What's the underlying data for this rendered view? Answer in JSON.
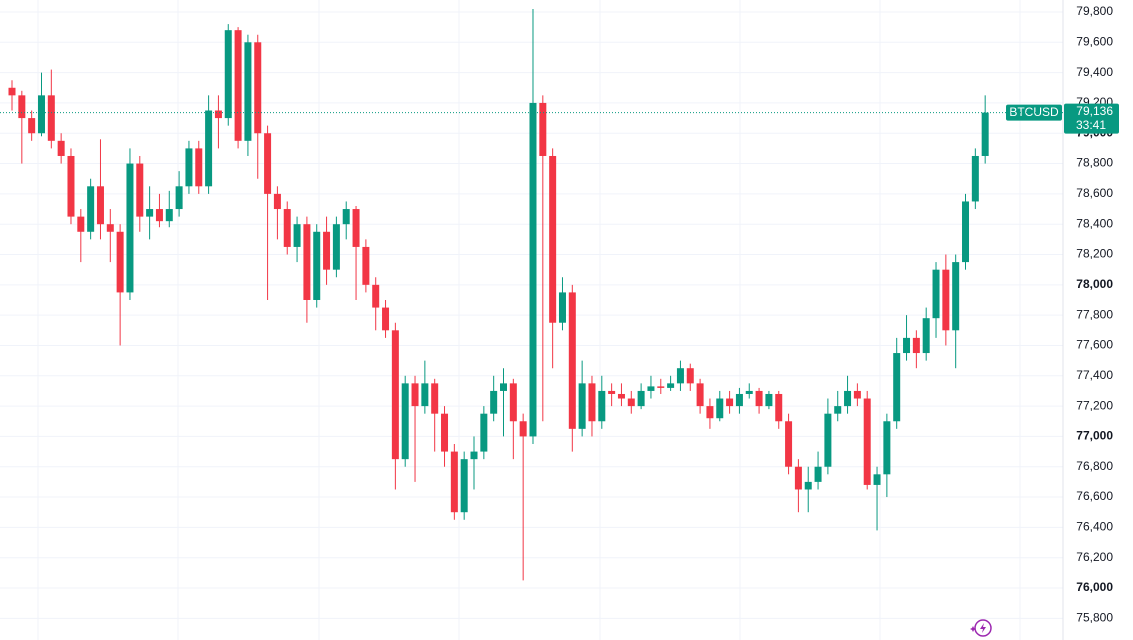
{
  "chart_data": {
    "type": "candlestick",
    "series": [
      {
        "name": "BTCUSD",
        "up_color": "#089981",
        "down_color": "#f23645",
        "open": [
          79300,
          79250,
          79100,
          79000,
          79250,
          78950,
          78850,
          78450,
          78350,
          78650,
          78400,
          78350,
          77950,
          78800,
          78450,
          78500,
          78420,
          78500,
          78650,
          78900,
          78650,
          79150,
          79100,
          79680,
          78950,
          79600,
          79000,
          78600,
          78500,
          78250,
          78400,
          77900,
          78350,
          78100,
          78400,
          78500,
          78250,
          78000,
          77850,
          77700,
          76850,
          77350,
          77200,
          77350,
          77150,
          76900,
          76500,
          76850,
          76900,
          77150,
          77300,
          77350,
          77100,
          77000,
          79200,
          78850,
          77750,
          77950,
          77050,
          77350,
          77100,
          77300,
          77280,
          77250,
          77200,
          77300,
          77330,
          77320,
          77350,
          77450,
          77350,
          77200,
          77120,
          77250,
          77200,
          77280,
          77300,
          77200,
          77280,
          77100,
          76800,
          76650,
          76700,
          76800,
          77150,
          77200,
          77300,
          77250,
          76680,
          76750,
          77100,
          77550,
          77650,
          77550,
          77780,
          78100,
          77700,
          78150,
          78550,
          78850
        ],
        "high": [
          79350,
          79280,
          79150,
          79400,
          79420,
          79000,
          78900,
          78500,
          78700,
          78960,
          78500,
          78400,
          78900,
          78850,
          78650,
          78600,
          78620,
          78750,
          78950,
          78950,
          79250,
          79250,
          79720,
          79700,
          79650,
          79650,
          79050,
          78650,
          78550,
          78450,
          78450,
          78400,
          78450,
          78450,
          78550,
          78520,
          78300,
          78050,
          77900,
          77750,
          77400,
          77400,
          77500,
          77380,
          77200,
          76950,
          76900,
          77000,
          77200,
          77400,
          77450,
          77380,
          77150,
          79820,
          79250,
          78900,
          78050,
          78000,
          77500,
          77400,
          77400,
          77350,
          77350,
          77300,
          77350,
          77400,
          77380,
          77400,
          77500,
          77480,
          77380,
          77250,
          77300,
          77300,
          77320,
          77350,
          77320,
          77300,
          77300,
          77150,
          76850,
          76800,
          76900,
          77250,
          77300,
          77400,
          77350,
          77300,
          76800,
          77150,
          77650,
          77800,
          77700,
          77850,
          78150,
          78200,
          78200,
          78600,
          78900,
          79250
        ],
        "low": [
          79150,
          78800,
          78950,
          78980,
          78900,
          78800,
          78400,
          78150,
          78300,
          78300,
          78150,
          77600,
          77900,
          78350,
          78300,
          78380,
          78380,
          78450,
          78600,
          78600,
          78600,
          78900,
          79050,
          78900,
          78850,
          78700,
          77900,
          78300,
          78200,
          78150,
          77750,
          77850,
          78000,
          78050,
          78300,
          77900,
          77950,
          77700,
          77650,
          76650,
          76800,
          76700,
          77150,
          76900,
          76800,
          76450,
          76450,
          76650,
          76850,
          77100,
          77000,
          76850,
          76050,
          76950,
          77100,
          77450,
          77700,
          76900,
          77000,
          77000,
          77050,
          77200,
          77200,
          77150,
          77180,
          77250,
          77280,
          77300,
          77300,
          77300,
          77150,
          77050,
          77100,
          77150,
          77150,
          77250,
          77150,
          77180,
          77050,
          76750,
          76500,
          76500,
          76650,
          76750,
          77100,
          77150,
          77200,
          76650,
          76380,
          76600,
          77050,
          77500,
          77450,
          77500,
          77650,
          77600,
          77450,
          78100,
          78500,
          78800
        ],
        "close": [
          79250,
          79100,
          79000,
          79250,
          78950,
          78850,
          78450,
          78350,
          78650,
          78400,
          78350,
          77950,
          78800,
          78450,
          78500,
          78420,
          78500,
          78650,
          78900,
          78650,
          79150,
          79100,
          79680,
          78950,
          79600,
          79000,
          78600,
          78500,
          78250,
          78400,
          77900,
          78350,
          78100,
          78400,
          78500,
          78250,
          78000,
          77850,
          77700,
          76850,
          77350,
          77200,
          77350,
          77150,
          76900,
          76500,
          76850,
          76900,
          77150,
          77300,
          77350,
          77100,
          77000,
          79200,
          78850,
          77750,
          77950,
          77050,
          77350,
          77100,
          77300,
          77280,
          77250,
          77200,
          77300,
          77330,
          77320,
          77350,
          77450,
          77350,
          77200,
          77120,
          77250,
          77200,
          77280,
          77300,
          77200,
          77280,
          77100,
          76800,
          76650,
          76700,
          76800,
          77150,
          77200,
          77300,
          77250,
          76680,
          76750,
          77100,
          77550,
          77650,
          77550,
          77780,
          78100,
          77700,
          78150,
          78550,
          78850,
          79136
        ]
      }
    ],
    "ylim": [
      75657,
      79879
    ],
    "yticks": [
      {
        "value": 75800,
        "label": "75,800"
      },
      {
        "value": 76000,
        "label": "76,000"
      },
      {
        "value": 76200,
        "label": "76,200"
      },
      {
        "value": 76400,
        "label": "76,400"
      },
      {
        "value": 76600,
        "label": "76,600"
      },
      {
        "value": 76800,
        "label": "76,800"
      },
      {
        "value": 77000,
        "label": "77,000"
      },
      {
        "value": 77200,
        "label": "77,200"
      },
      {
        "value": 77400,
        "label": "77,400"
      },
      {
        "value": 77600,
        "label": "77,600"
      },
      {
        "value": 77800,
        "label": "77,800"
      },
      {
        "value": 78000,
        "label": "78,000"
      },
      {
        "value": 78200,
        "label": "78,200"
      },
      {
        "value": 78400,
        "label": "78,400"
      },
      {
        "value": 78600,
        "label": "78,600"
      },
      {
        "value": 78800,
        "label": "78,800"
      },
      {
        "value": 79000,
        "label": "79,000"
      },
      {
        "value": 79200,
        "label": "79,200"
      },
      {
        "value": 79400,
        "label": "79,400"
      },
      {
        "value": 79600,
        "label": "79,600"
      },
      {
        "value": 79800,
        "label": "79,800"
      }
    ],
    "grid": true,
    "price_label": {
      "value": 79136,
      "label": "79,136"
    },
    "countdown": "33:41",
    "price_label_color": "#089981"
  }
}
